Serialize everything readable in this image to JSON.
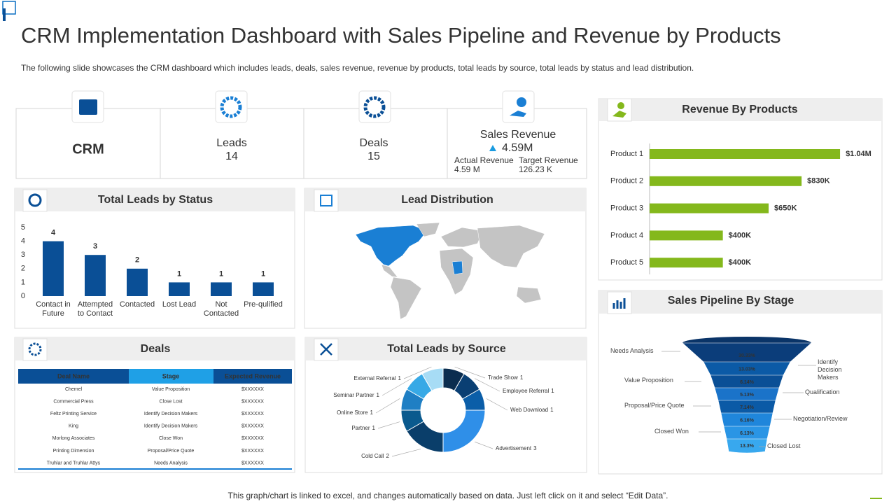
{
  "header": {
    "title": "CRM Implementation Dashboard with Sales Pipeline and Revenue by Products",
    "subtitle": "The following slide showcases the CRM dashboard which includes leads, deals, sales revenue,  revenue  by products, total leads by source, total leads by status and lead distribution."
  },
  "kpis": {
    "crm": "CRM",
    "leads": {
      "label": "Leads",
      "value": 14
    },
    "deals": {
      "label": "Deals",
      "value": 15
    },
    "sales_revenue": {
      "label": "Sales Revenue",
      "change": "4.59M",
      "actual_label": "Actual Revenue",
      "actual": "4.59 M",
      "target_label": "Target Revenue",
      "target": "126.23 K"
    }
  },
  "leads_by_status": {
    "type": "bar",
    "title": "Total Leads by Status",
    "categories": [
      "Contact in Future",
      "Attempted to Contact",
      "Contacted",
      "Lost Lead",
      "Not Contacted",
      "Pre-qulified"
    ],
    "values": [
      4,
      3,
      2,
      1,
      1,
      1
    ],
    "ylim": [
      0,
      5
    ],
    "yticks": [
      0,
      1,
      2,
      3,
      4,
      5
    ],
    "color": "#0a4f96"
  },
  "lead_distribution": {
    "title": "Lead Distribution"
  },
  "deals": {
    "title": "Deals",
    "columns": [
      "Deal Name",
      "Stage",
      "Expected Revenue"
    ],
    "rows": [
      [
        "Chemel",
        "Value Proposition",
        "$XXXXXX"
      ],
      [
        "Commercial Press",
        "Close Lost",
        "$XXXXXX"
      ],
      [
        "Feltz Printing Service",
        "Identify Decision Makers",
        "$XXXXXX"
      ],
      [
        "King",
        "Identify Decision Makers",
        "$XXXXXX"
      ],
      [
        "Morlong Associates",
        "Close Won",
        "$XXXXXX"
      ],
      [
        "Printing Dimension",
        "Proposal/Price Quote",
        "$XXXXXX"
      ],
      [
        "Truhlar and Truhlar Attys",
        "Needs Analysis",
        "$XXXXXX"
      ]
    ]
  },
  "leads_by_source": {
    "type": "donut",
    "title": "Total Leads by Source",
    "categories": [
      "Trade Show",
      "Employee Referral",
      "Web Download",
      "Advertisement",
      "Cold Call",
      "Partner",
      "Online Store",
      "Seminar Partner",
      "External Referral"
    ],
    "values": [
      1,
      1,
      1,
      3,
      2,
      1,
      1,
      1,
      1
    ],
    "colors": [
      "#0b2d4f",
      "#0a3f73",
      "#0b5ea8",
      "#2f8fe8",
      "#0a3e6a",
      "#0a5a8e",
      "#1f7fc4",
      "#37a9e6",
      "#a7dcf5"
    ]
  },
  "revenue_by_products": {
    "type": "bar",
    "orientation": "horizontal",
    "title": "Revenue By Products",
    "categories": [
      "Product 1",
      "Product 2",
      "Product 3",
      "Product 4",
      "Product 5"
    ],
    "values": [
      1040000,
      830000,
      650000,
      400000,
      400000
    ],
    "value_labels": [
      "$1.04M",
      "$830K",
      "$650K",
      "$400K",
      "$400K"
    ],
    "xlim": [
      0,
      1250000
    ],
    "color": "#84b81c"
  },
  "sales_pipeline": {
    "type": "funnel",
    "title": "Sales Pipeline By Stage",
    "stages": [
      "Needs Analysis",
      "Identify Decision Makers",
      "Value Proposition",
      "Qualification",
      "Proposal/Price Quote",
      "Negotiation/Review",
      "Closed Won",
      "Closed Lost"
    ],
    "values": [
      30.33,
      13.03,
      6.14,
      5.13,
      7.14,
      6.16,
      6.13,
      13.3
    ],
    "value_labels": [
      "30.33%",
      "13.03%",
      "6.14%",
      "5.13%",
      "7.14%",
      "6.16%",
      "6.13%",
      "13.3%"
    ]
  },
  "footer": "This graph/chart is linked to excel, and changes automatically based on data. Just left click on it and select “Edit Data”."
}
